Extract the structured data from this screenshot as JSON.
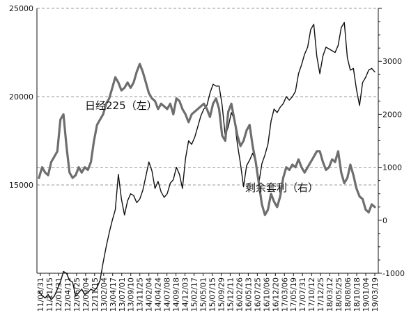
{
  "chart_data": {
    "type": "line",
    "title": "",
    "xlabel": "",
    "ylabel_left": "",
    "ylabel_right": "",
    "y_left": {
      "lim": [
        10000,
        25000
      ],
      "ticks": [
        15000,
        20000,
        25000
      ],
      "tick_labels": [
        "15000",
        "20000",
        "25000"
      ]
    },
    "y_right": {
      "lim": [
        -1000,
        4000
      ],
      "ticks": [
        -1000,
        0,
        1000,
        2000,
        3000
      ],
      "tick_labels": [
        "-1000",
        "0",
        "1000",
        "2000",
        "3000"
      ]
    },
    "grid": "horizontal dashed",
    "x_ticks": [
      "11/08/31",
      "11/11/15",
      "12/01/31",
      "12/04/11",
      "12/06/25",
      "12/09/04",
      "12/11/15",
      "13/02/04",
      "13/04/17",
      "13/07/01",
      "13/09/10",
      "13/11/25",
      "14/02/04",
      "14/04/24",
      "14/07/08",
      "14/09/18",
      "14/12/03",
      "15/02/17",
      "15/05/01",
      "15/07/15",
      "15/09/29",
      "15/12/11",
      "16/02/26",
      "16/05/13",
      "16/07/25",
      "16/10/06",
      "16/12/20",
      "17/03/06",
      "17/05/19",
      "17/07/31",
      "17/10/12",
      "17/12/25",
      "18/03/12",
      "18/05/25",
      "18/08/06",
      "18/10/18",
      "19/01/04",
      "19/03/19"
    ],
    "annotations": [
      {
        "text": "日经225（左）",
        "near_series": "nikkei"
      },
      {
        "text": "剩余套利（右）",
        "near_series": "arbitrage"
      }
    ],
    "series": [
      {
        "id": "nikkei",
        "axis": "left",
        "color": "#111111",
        "values": [
          8950,
          8750,
          8600,
          8800,
          8500,
          8700,
          9100,
          9500,
          10100,
          10000,
          9600,
          9500,
          8700,
          8900,
          9100,
          8800,
          8900,
          9100,
          9000,
          9200,
          9600,
          10600,
          11500,
          12300,
          13000,
          13600,
          15600,
          14200,
          13300,
          14100,
          14500,
          14400,
          14000,
          14200,
          14700,
          15500,
          16300,
          15800,
          14800,
          15200,
          14600,
          14300,
          14500,
          15100,
          15300,
          16000,
          15600,
          14800,
          16500,
          17500,
          17300,
          17700,
          18300,
          18900,
          19300,
          19500,
          20200,
          20700,
          20600,
          20600,
          19500,
          17800,
          18300,
          19100,
          18700,
          17300,
          16200,
          14900,
          16100,
          16400,
          16800,
          16300,
          15100,
          16200,
          16700,
          17300,
          18600,
          19300,
          19100,
          19400,
          19600,
          20000,
          19800,
          20000,
          20300,
          21300,
          21800,
          22400,
          22800,
          23800,
          24100,
          22300,
          21300,
          22300,
          22800,
          22700,
          22600,
          22500,
          22900,
          23900,
          24200,
          22200,
          21500,
          21600,
          20400,
          19500,
          20800,
          21100,
          21500,
          21600,
          21400
        ]
      },
      {
        "id": "arbitrage",
        "axis": "right",
        "color": "#6e6e6e",
        "values": [
          800,
          1000,
          900,
          850,
          1100,
          1200,
          1300,
          1900,
          2000,
          1400,
          900,
          800,
          850,
          1000,
          900,
          1000,
          950,
          1100,
          1500,
          1800,
          1900,
          2000,
          2200,
          2300,
          2500,
          2700,
          2600,
          2450,
          2500,
          2600,
          2500,
          2600,
          2800,
          2950,
          2800,
          2600,
          2400,
          2300,
          2250,
          2100,
          2200,
          2150,
          2100,
          2200,
          2000,
          2300,
          2250,
          2100,
          2000,
          1850,
          2000,
          2050,
          2100,
          2150,
          2200,
          2100,
          1950,
          2200,
          2300,
          2100,
          1600,
          1500,
          2050,
          2200,
          1900,
          1600,
          1400,
          1500,
          1700,
          1800,
          1400,
          1100,
          700,
          300,
          100,
          200,
          500,
          350,
          250,
          450,
          800,
          1000,
          950,
          1050,
          1000,
          1150,
          1000,
          900,
          1000,
          1100,
          1200,
          1300,
          1300,
          1100,
          950,
          1000,
          1150,
          1100,
          1300,
          900,
          700,
          800,
          1050,
          850,
          600,
          450,
          400,
          200,
          150,
          300,
          250
        ]
      }
    ]
  }
}
